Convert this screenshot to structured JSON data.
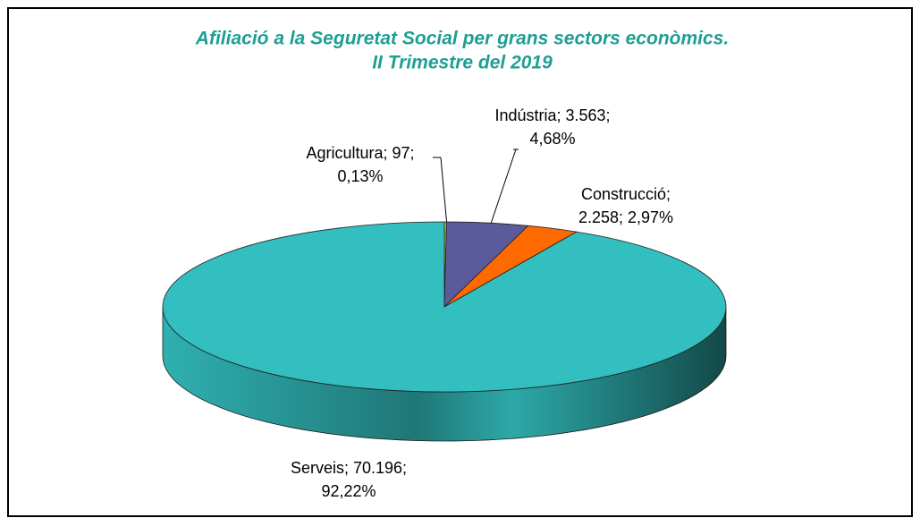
{
  "chart_data": {
    "type": "pie",
    "title": [
      "Afiliació a la Seguretat Social per grans sectors econòmics.",
      "II Trimestre del 2019"
    ],
    "categories": [
      "Agricultura",
      "Indústria",
      "Construcció",
      "Serveis"
    ],
    "values": [
      97,
      3563,
      2258,
      70196
    ],
    "value_labels": [
      "97",
      "3.563",
      "2.258",
      "70.196"
    ],
    "percentages": [
      0.13,
      4.68,
      2.97,
      92.22
    ],
    "percentage_labels": [
      "0,13%",
      "4,68%",
      "2,97%",
      "92,22%"
    ],
    "label_separator": ";",
    "colors": [
      "#9acd32",
      "#5b5b9b",
      "#ff6a00",
      "#33bfbf"
    ],
    "legend": false
  }
}
